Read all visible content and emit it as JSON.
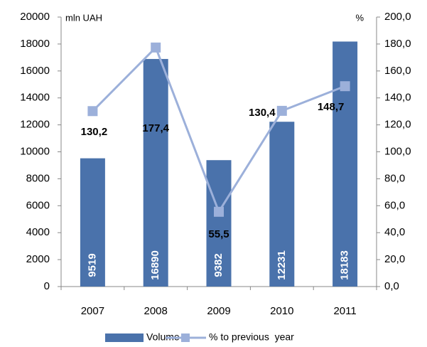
{
  "chart_data": {
    "type": "bar_line",
    "y_label": "mln UAH",
    "y2_label": "%",
    "categories": [
      "2007",
      "2008",
      "2009",
      "2010",
      "2011"
    ],
    "series": [
      {
        "name": "Volume",
        "type": "bar",
        "color": "#4a72ab",
        "values": [
          9519,
          16890,
          9382,
          12231,
          18183
        ]
      },
      {
        "name": "% to previous  year",
        "type": "line",
        "axis": "y2",
        "color": "#9cb0da",
        "values": [
          130.2,
          177.4,
          55.5,
          130.4,
          148.7
        ],
        "value_labels": [
          "130,2",
          "177,4",
          "55,5",
          "130,4",
          "148,7"
        ]
      }
    ],
    "ylim": [
      0,
      20000
    ],
    "yticks": [
      0,
      2000,
      4000,
      6000,
      8000,
      10000,
      12000,
      14000,
      16000,
      18000,
      20000
    ],
    "y2lim": [
      0,
      200
    ],
    "y2ticks": [
      {
        "value": 0,
        "label": "0,0"
      },
      {
        "value": 20,
        "label": "20,0"
      },
      {
        "value": 40,
        "label": "40,0"
      },
      {
        "value": 60,
        "label": "60,0"
      },
      {
        "value": 80,
        "label": "80,0"
      },
      {
        "value": 100,
        "label": "100,0"
      },
      {
        "value": 120,
        "label": "120,0"
      },
      {
        "value": 140,
        "label": "140,0"
      },
      {
        "value": 160,
        "label": "160,0"
      },
      {
        "value": 180,
        "label": "180,0"
      },
      {
        "value": 200,
        "label": "200,0"
      }
    ],
    "legend": "bottom"
  }
}
